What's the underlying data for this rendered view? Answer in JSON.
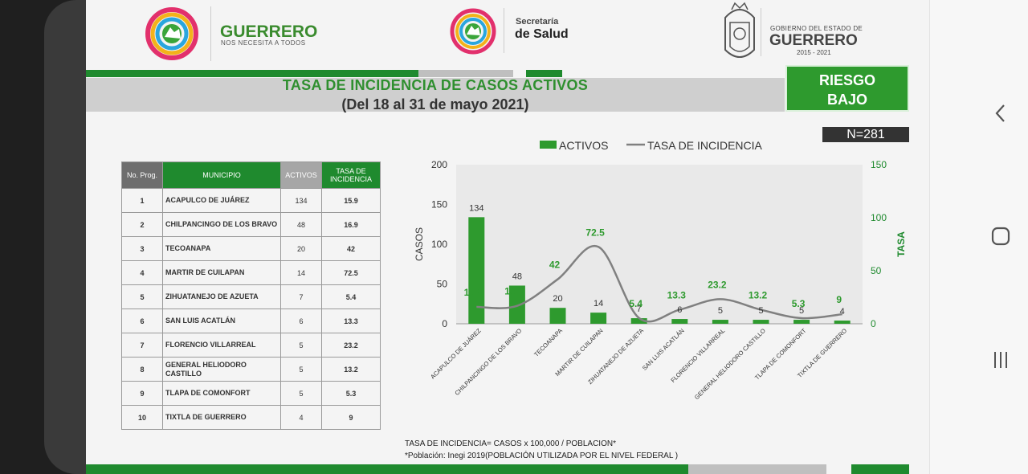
{
  "header": {
    "brand_left_title": "GUERRERO",
    "brand_left_sub": "NOS NECESITA A TODOS",
    "brand_center_line1": "Secretaría",
    "brand_center_line2": "de Salud",
    "brand_right_line1": "GOBIERNO DEL ESTADO DE",
    "brand_right_line2": "GUERRERO",
    "brand_right_line3": "2015 - 2021"
  },
  "title_line1": "TASA DE INCIDENCIA DE CASOS ACTIVOS",
  "title_line2": "(Del 18 al 31 de mayo 2021)",
  "risk_line1": "RIESGO",
  "risk_line2": "BAJO",
  "n_count": "N=281",
  "table": {
    "headers": [
      "No. Prog.",
      "MUNICIPIO",
      "ACTIVOS",
      "TASA DE INCIDENCIA"
    ],
    "rows": [
      {
        "no": "1",
        "municipio": "ACAPULCO DE JUÁREZ",
        "activos": "134",
        "tasa": "15.9"
      },
      {
        "no": "2",
        "municipio": "CHILPANCINGO DE LOS BRAVO",
        "activos": "48",
        "tasa": "16.9"
      },
      {
        "no": "3",
        "municipio": "TECOANAPA",
        "activos": "20",
        "tasa": "42"
      },
      {
        "no": "4",
        "municipio": "MARTIR DE CUILAPAN",
        "activos": "14",
        "tasa": "72.5"
      },
      {
        "no": "5",
        "municipio": "ZIHUATANEJO DE AZUETA",
        "activos": "7",
        "tasa": "5.4"
      },
      {
        "no": "6",
        "municipio": "SAN LUIS ACATLÁN",
        "activos": "6",
        "tasa": "13.3"
      },
      {
        "no": "7",
        "municipio": "FLORENCIO VILLARREAL",
        "activos": "5",
        "tasa": "23.2"
      },
      {
        "no": "8",
        "municipio": "GENERAL HELIODORO CASTILLO",
        "activos": "5",
        "tasa": "13.2"
      },
      {
        "no": "9",
        "municipio": "TLAPA DE COMONFORT",
        "activos": "5",
        "tasa": "5.3"
      },
      {
        "no": "10",
        "municipio": "TIXTLA DE GUERRERO",
        "activos": "4",
        "tasa": "9"
      }
    ]
  },
  "chart_data": {
    "type": "bar",
    "categories": [
      "ACAPULCO DE JUÁREZ",
      "CHILPANCINGO DE LOS BRAVO",
      "TECOANAPA",
      "MARTIR DE CUILAPAN",
      "ZIHUATANEJO DE AZUETA",
      "SAN LUIS ACATLÁN",
      "FLORENCIO VILLARREAL",
      "GENERAL HELIODORO CASTILLO",
      "TLAPA DE COMONFORT",
      "TIXTLA DE GUERRERO"
    ],
    "series": [
      {
        "name": "ACTIVOS",
        "type": "bar",
        "axis": "left",
        "values": [
          134,
          48,
          20,
          14,
          7,
          6,
          5,
          5,
          5,
          4
        ],
        "color": "#2e9a2e"
      },
      {
        "name": "TASA DE INCIDENCIA",
        "type": "line",
        "axis": "right",
        "values": [
          15.9,
          16.9,
          42,
          72.5,
          5.4,
          13.3,
          23.2,
          13.2,
          5.3,
          9
        ],
        "color": "#808080"
      }
    ],
    "ylabel": "CASOS",
    "y2label": "TASA",
    "ylim": [
      0,
      200
    ],
    "y2lim": [
      0,
      150
    ],
    "yticks": [
      0,
      50,
      100,
      150,
      200
    ],
    "y2ticks": [
      0,
      50,
      100,
      150
    ],
    "legend_position": "top"
  },
  "footnote_line1": "TASA DE INCIDENCIA= CASOS x 100,000 / POBLACION*",
  "footnote_line2": "*Población: Inegi 2019(POBLACIÓN UTILIZADA POR EL NIVEL FEDERAL )",
  "nav": {
    "back_icon": "chevron-left-icon",
    "home_icon": "home-icon",
    "recents_icon": "recents-icon"
  }
}
